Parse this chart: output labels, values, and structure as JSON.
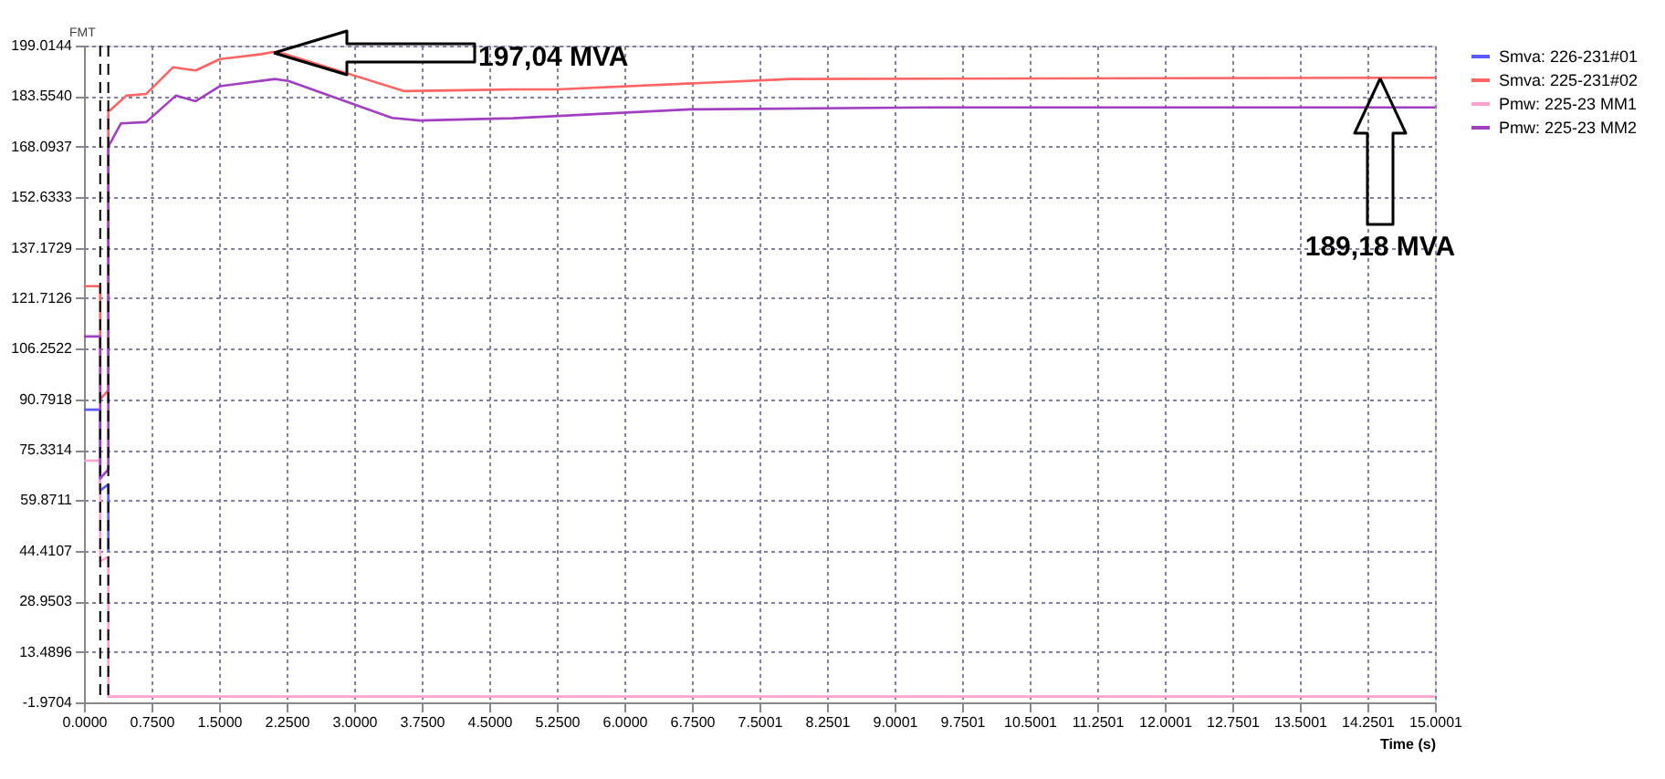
{
  "chart_data": {
    "type": "line",
    "xlabel": "Time (s)",
    "x": [
      0,
      0.18,
      0.18,
      0.27,
      0.27,
      0.29,
      0.47,
      0.69,
      0.99,
      1.24,
      1.51,
      1.97,
      2.1,
      2.24,
      3.55,
      4.76,
      5.25,
      7.85,
      15.0
    ],
    "series": [
      {
        "name": "Smva: 226-231#01",
        "color": "#5a5aff",
        "values": [
          87.6,
          87.6,
          62.9,
          64.7,
          44.4,
          null,
          null,
          null,
          null,
          null,
          null,
          null,
          null,
          null,
          null,
          null,
          null,
          null,
          null
        ]
      },
      {
        "name": "Smva: 225-231#02",
        "color": "#ff6464",
        "values": [
          125.4,
          125.4,
          90.8,
          93.5,
          179.2,
          179.2,
          183.7,
          184.2,
          192.4,
          191.4,
          194.9,
          196.4,
          197.04,
          196.4,
          185.1,
          185.6,
          185.6,
          188.8,
          189.18
        ]
      },
      {
        "name": "Pmw: 225-23 MM1",
        "color": "#ffa0d0",
        "values": [
          72.0,
          72.0,
          41.2,
          42.6,
          -0.2,
          -0.2,
          -0.2,
          -0.2,
          -0.2,
          -0.2,
          -0.2,
          -0.2,
          -0.2,
          -0.2,
          -0.2,
          -0.2,
          -0.2,
          -0.2,
          -0.2
        ]
      },
      {
        "name": "Pmw: 225-23 MM2",
        "color": "#a040c0",
        "x": [
          0,
          0.18,
          0.18,
          0.27,
          0.27,
          0.41,
          0.69,
          1.02,
          1.24,
          1.51,
          2.12,
          2.27,
          3.42,
          3.73,
          4.76,
          6.73,
          9.47,
          15.0
        ],
        "values": [
          110.0,
          110.0,
          66.5,
          69.3,
          168.1,
          175.2,
          175.6,
          183.7,
          182.0,
          186.6,
          188.8,
          188.2,
          176.9,
          176.1,
          176.8,
          179.5,
          180.1,
          180.1
        ]
      }
    ],
    "xlim": [
      0,
      15.0001
    ],
    "xticks": [
      {
        "value": 0,
        "label": "0.0000"
      },
      {
        "value": 0.75,
        "label": "0.7500"
      },
      {
        "value": 1.5,
        "label": "1.5000"
      },
      {
        "value": 2.25,
        "label": "2.2500"
      },
      {
        "value": 3.0,
        "label": "3.0000"
      },
      {
        "value": 3.75,
        "label": "3.7500"
      },
      {
        "value": 4.5,
        "label": "4.5000"
      },
      {
        "value": 5.25,
        "label": "5.2500"
      },
      {
        "value": 6.0,
        "label": "6.0000"
      },
      {
        "value": 6.75,
        "label": "6.7500"
      },
      {
        "value": 7.5001,
        "label": "7.5001"
      },
      {
        "value": 8.2501,
        "label": "8.2501"
      },
      {
        "value": 9.0001,
        "label": "9.0001"
      },
      {
        "value": 9.7501,
        "label": "9.7501"
      },
      {
        "value": 10.5001,
        "label": "10.5001"
      },
      {
        "value": 11.2501,
        "label": "11.2501"
      },
      {
        "value": 12.0001,
        "label": "12.0001"
      },
      {
        "value": 12.7501,
        "label": "12.7501"
      },
      {
        "value": 13.5001,
        "label": "13.5001"
      },
      {
        "value": 14.2501,
        "label": "14.2501"
      },
      {
        "value": 15.0001,
        "label": "15.0001"
      }
    ],
    "ylim": [
      -1.9704,
      199.0144
    ],
    "yticks": [
      -1.9704,
      13.4896,
      28.9503,
      44.4107,
      59.8711,
      75.3314,
      90.7918,
      106.2522,
      121.7126,
      137.1729,
      152.6333,
      168.0937,
      {
        "value": 183.554,
        "label": "183.5540"
      },
      199.0144
    ],
    "grid": true,
    "legend": "top right",
    "line_style": "solid",
    "marker": "none",
    "ref_lines": [
      {
        "axis": "x",
        "value": 0.18,
        "color": "#000000",
        "line_style": "dashed"
      },
      {
        "axis": "x",
        "value": 0.27,
        "color": "#000000",
        "line_style": "dashed"
      }
    ],
    "annotations": [
      "FMT",
      "197,04 MVA",
      "189,18 MVA"
    ]
  }
}
